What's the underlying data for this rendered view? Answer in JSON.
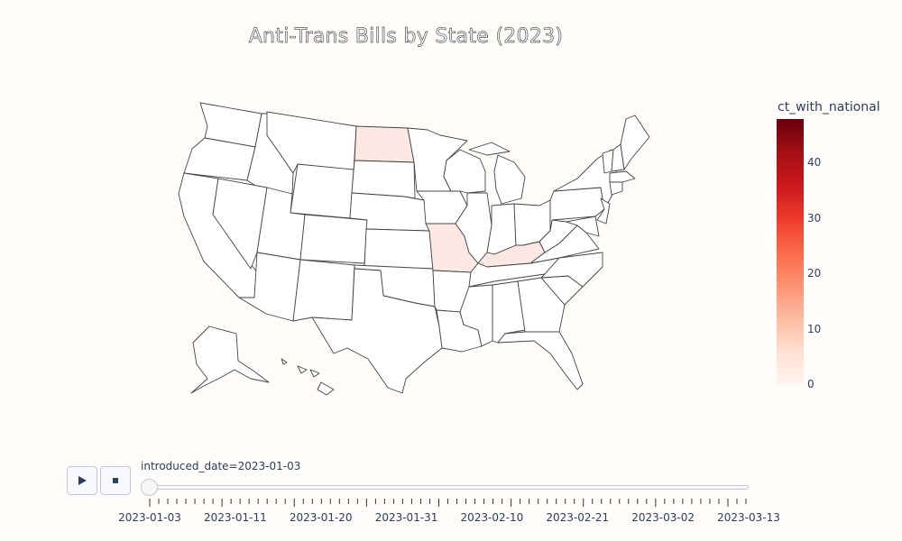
{
  "title": "Anti-Trans Bills by State (2023)",
  "colorbar": {
    "title": "ct_with_national",
    "ticks": [
      "0",
      "10",
      "20",
      "30",
      "40"
    ],
    "range": [
      0,
      48
    ],
    "colors": [
      "#fff5f0",
      "#fee0d2",
      "#fcbba1",
      "#fc9272",
      "#fb6a4a",
      "#ef3b2c",
      "#cb181d",
      "#a50f15",
      "#67000d"
    ]
  },
  "map_data": {
    "frame": "introduced_date=2023-01-03",
    "highlighted_states": [
      {
        "state": "North Dakota",
        "color": "#fbe8e2"
      },
      {
        "state": "Missouri",
        "color": "#fbe8e2"
      },
      {
        "state": "Kentucky",
        "color": "#fbe8e2"
      }
    ],
    "default_color": "#ffffff"
  },
  "controls": {
    "play_icon": "play-icon",
    "stop_icon": "stop-icon",
    "slider_prefix": "introduced_date=",
    "slider_value": "2023-01-03",
    "date_labels": [
      "2023-01-03",
      "2023-01-11",
      "2023-01-20",
      "2023-01-31",
      "2023-02-10",
      "2023-02-21",
      "2023-03-02",
      "2023-03-13"
    ],
    "current_index": 0
  }
}
